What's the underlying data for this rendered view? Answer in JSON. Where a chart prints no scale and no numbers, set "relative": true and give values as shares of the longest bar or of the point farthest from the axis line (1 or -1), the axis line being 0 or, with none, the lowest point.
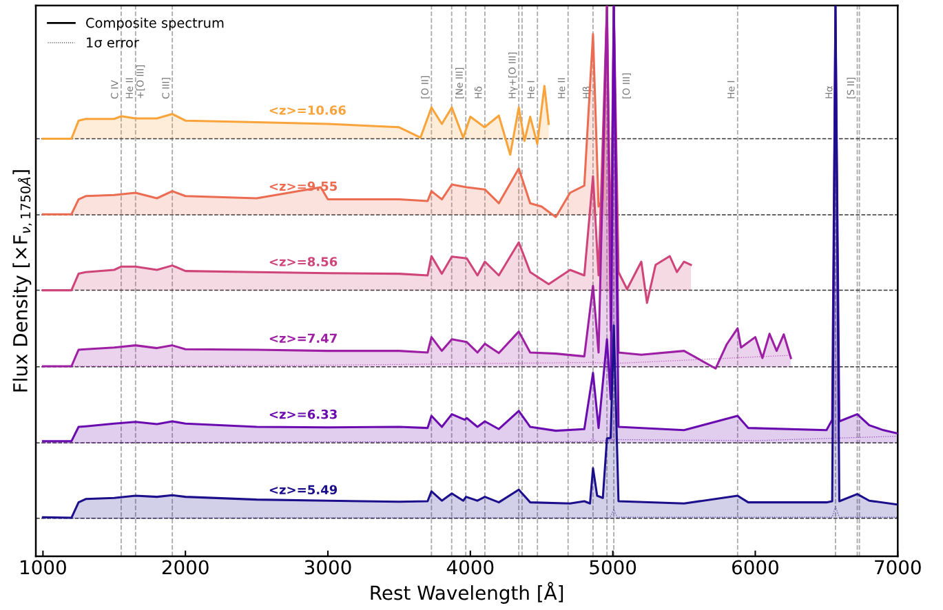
{
  "chart_data": {
    "type": "area",
    "relative": true,
    "xlabel": "Rest Wavelength [Å]",
    "ylabel": "Flux Density [×F$_{ν,1750Å}$]",
    "xlim": [
      950,
      7000
    ],
    "xticks": [
      1000,
      2000,
      3000,
      4000,
      5000,
      6000,
      7000
    ],
    "grid": false,
    "legend": "top left",
    "annotations": [
      "Composite spectrum",
      "1σ error"
    ],
    "series": [
      {
        "name": "<z>=10.66",
        "color": "#f9a33b",
        "x": [
          1000,
          1200,
          1250,
          1300,
          1500,
          1550,
          1650,
          1800,
          1908,
          2000,
          2500,
          3000,
          3500,
          3650,
          3727,
          3800,
          3870,
          3950,
          4000,
          4100,
          4200,
          4280,
          4340,
          4380,
          4420,
          4470,
          4520,
          4550
        ],
        "values": [
          0.758,
          0.758,
          0.791,
          0.794,
          0.794,
          0.799,
          0.795,
          0.795,
          0.803,
          0.791,
          0.788,
          0.785,
          0.779,
          0.76,
          0.815,
          0.785,
          0.815,
          0.76,
          0.798,
          0.779,
          0.8,
          0.729,
          0.815,
          0.754,
          0.798,
          0.749,
          0.854,
          0.785
        ]
      },
      {
        "name": "<z>=9.55",
        "color": "#ec6c52",
        "x": [
          1000,
          1200,
          1250,
          1300,
          1500,
          1650,
          1800,
          1908,
          2000,
          2500,
          2950,
          3000,
          3500,
          3700,
          3727,
          3800,
          3870,
          3975,
          4102,
          4200,
          4340,
          4420,
          4500,
          4600,
          4700,
          4800,
          4861,
          4900,
          4930,
          4959
        ],
        "values": [
          0.621,
          0.621,
          0.648,
          0.654,
          0.656,
          0.66,
          0.65,
          0.663,
          0.654,
          0.65,
          0.67,
          0.648,
          0.648,
          0.645,
          0.663,
          0.648,
          0.675,
          0.67,
          0.666,
          0.641,
          0.704,
          0.641,
          0.635,
          0.616,
          0.66,
          0.673,
          0.948,
          0.635,
          0.648,
          1.0
        ]
      },
      {
        "name": "<z>=8.56",
        "color": "#cf4479",
        "x": [
          1000,
          1200,
          1250,
          1300,
          1500,
          1550,
          1650,
          1800,
          1908,
          2000,
          2500,
          3000,
          3500,
          3700,
          3727,
          3800,
          3870,
          3975,
          4050,
          4102,
          4200,
          4340,
          4420,
          4550,
          4700,
          4800,
          4861,
          4900,
          4959,
          4985,
          5007,
          5040,
          5100,
          5200,
          5240,
          5300,
          5400,
          5450,
          5500,
          5548
        ],
        "values": [
          0.483,
          0.483,
          0.513,
          0.516,
          0.52,
          0.526,
          0.526,
          0.52,
          0.528,
          0.518,
          0.516,
          0.514,
          0.513,
          0.51,
          0.545,
          0.513,
          0.544,
          0.541,
          0.51,
          0.535,
          0.51,
          0.57,
          0.516,
          0.494,
          0.52,
          0.51,
          0.69,
          0.51,
          1.0,
          0.53,
          1.0,
          0.516,
          0.485,
          0.535,
          0.46,
          0.529,
          0.545,
          0.516,
          0.535,
          0.529
        ]
      },
      {
        "name": "<z>=7.47",
        "color": "#9d1fa4",
        "x": [
          1000,
          1200,
          1250,
          1300,
          1500,
          1650,
          1800,
          1908,
          2000,
          2500,
          3000,
          3500,
          3700,
          3727,
          3800,
          3870,
          3975,
          4050,
          4102,
          4200,
          4340,
          4420,
          4600,
          4800,
          4861,
          4900,
          4959,
          4985,
          5007,
          5040,
          5200,
          5500,
          5722,
          5800,
          5876,
          5900,
          6000,
          6050,
          6100,
          6150,
          6200,
          6250
        ],
        "values": [
          0.345,
          0.345,
          0.375,
          0.376,
          0.379,
          0.383,
          0.378,
          0.383,
          0.376,
          0.375,
          0.373,
          0.373,
          0.37,
          0.398,
          0.373,
          0.394,
          0.389,
          0.37,
          0.386,
          0.369,
          0.408,
          0.37,
          0.368,
          0.363,
          0.491,
          0.37,
          1.0,
          0.41,
          1.0,
          0.37,
          0.366,
          0.373,
          0.341,
          0.385,
          0.414,
          0.379,
          0.398,
          0.36,
          0.404,
          0.373,
          0.403,
          0.36
        ]
      },
      {
        "name": "<z>=6.33",
        "color": "#6a0bb0",
        "x": [
          1000,
          1200,
          1250,
          1300,
          1500,
          1650,
          1800,
          1908,
          2000,
          2500,
          3000,
          3500,
          3700,
          3727,
          3800,
          3870,
          3960,
          3975,
          4050,
          4102,
          4200,
          4340,
          4420,
          4600,
          4800,
          4861,
          4900,
          4959,
          4985,
          5007,
          5040,
          5500,
          5876,
          5950,
          6500,
          6540,
          6563,
          6590,
          6716,
          6800,
          6900,
          7000
        ],
        "values": [
          0.209,
          0.209,
          0.235,
          0.236,
          0.241,
          0.244,
          0.24,
          0.245,
          0.241,
          0.235,
          0.234,
          0.235,
          0.233,
          0.255,
          0.235,
          0.258,
          0.248,
          0.251,
          0.235,
          0.245,
          0.231,
          0.264,
          0.235,
          0.228,
          0.231,
          0.333,
          0.233,
          0.394,
          0.285,
          1.0,
          0.235,
          0.229,
          0.255,
          0.233,
          0.229,
          0.248,
          1.0,
          0.245,
          0.258,
          0.238,
          0.229,
          0.223
        ]
      },
      {
        "name": "<z>=5.49",
        "color": "#1c0f8b",
        "x": [
          1000,
          1200,
          1250,
          1300,
          1500,
          1650,
          1800,
          1908,
          2000,
          2500,
          3000,
          3500,
          3700,
          3727,
          3800,
          3870,
          3950,
          3970,
          4050,
          4102,
          4200,
          4340,
          4420,
          4700,
          4800,
          4840,
          4861,
          4890,
          4930,
          4959,
          4985,
          5007,
          5040,
          5500,
          5876,
          5950,
          6500,
          6540,
          6563,
          6590,
          6716,
          6800,
          7000
        ],
        "values": [
          0.071,
          0.07,
          0.098,
          0.104,
          0.106,
          0.11,
          0.108,
          0.111,
          0.108,
          0.103,
          0.101,
          0.099,
          0.1,
          0.118,
          0.101,
          0.114,
          0.101,
          0.108,
          0.101,
          0.108,
          0.098,
          0.121,
          0.098,
          0.096,
          0.1,
          0.096,
          0.16,
          0.11,
          0.106,
          0.214,
          0.215,
          0.419,
          0.1,
          0.096,
          0.11,
          0.098,
          0.098,
          0.1,
          1.0,
          0.1,
          0.113,
          0.101,
          0.094
        ]
      },
      {
        "type": "line",
        "line_style": "dotted",
        "color": "#9d1fa4",
        "x": [
          1000,
          3000,
          4861,
          5000,
          6000,
          6250
        ],
        "values": [
          0.345,
          0.347,
          0.352,
          0.35,
          0.362,
          0.365
        ]
      },
      {
        "type": "line",
        "line_style": "dotted",
        "color": "#6a0bb0",
        "x": [
          1000,
          3000,
          4840,
          4861,
          4880,
          5007,
          6000,
          7000
        ],
        "values": [
          0.206,
          0.208,
          0.208,
          0.215,
          0.208,
          0.212,
          0.21,
          0.218
        ]
      },
      {
        "type": "line",
        "line_style": "dotted",
        "color": "#1c0f8b",
        "x": [
          1000,
          3000,
          4980,
          5007,
          5030,
          6540,
          6563,
          6590,
          7000
        ],
        "values": [
          0.069,
          0.07,
          0.07,
          0.085,
          0.071,
          0.071,
          0.09,
          0.071,
          0.071
        ]
      }
    ],
    "ref_lines": [
      {
        "axis": "y",
        "value": 0.758,
        "color": "#333333",
        "line_style": "dashed"
      },
      {
        "axis": "y",
        "value": 0.62,
        "color": "#333333",
        "line_style": "dashed"
      },
      {
        "axis": "y",
        "value": 0.483,
        "color": "#333333",
        "line_style": "dashed"
      },
      {
        "axis": "y",
        "value": 0.344,
        "color": "#333333",
        "line_style": "dashed"
      },
      {
        "axis": "y",
        "value": 0.206,
        "color": "#333333",
        "line_style": "dashed"
      },
      {
        "axis": "y",
        "value": 0.069,
        "color": "#333333",
        "line_style": "dashed"
      },
      {
        "axis": "x",
        "value": 1549,
        "label": "C IV",
        "color": "#aaaaaa",
        "line_style": "dashed"
      },
      {
        "axis": "x",
        "value": 1650,
        "label": "He II\n+[O III]",
        "color": "#aaaaaa",
        "line_style": "dashed"
      },
      {
        "axis": "x",
        "value": 1908,
        "label": "C III]",
        "color": "#aaaaaa",
        "line_style": "dashed"
      },
      {
        "axis": "x",
        "value": 3727,
        "label": "[O II]",
        "color": "#aaaaaa",
        "line_style": "dashed"
      },
      {
        "axis": "x",
        "value": 3869,
        "color": "#aaaaaa",
        "line_style": "dashed"
      },
      {
        "axis": "x",
        "value": 3968,
        "label": "[Ne III]",
        "color": "#aaaaaa",
        "line_style": "dashed"
      },
      {
        "axis": "x",
        "value": 4102,
        "label": "Hδ",
        "color": "#aaaaaa",
        "line_style": "dashed"
      },
      {
        "axis": "x",
        "value": 4340,
        "label": "Hγ+[O III]",
        "color": "#aaaaaa",
        "line_style": "dashed"
      },
      {
        "axis": "x",
        "value": 4363,
        "color": "#aaaaaa",
        "line_style": "dashed"
      },
      {
        "axis": "x",
        "value": 4471,
        "label": "He I",
        "color": "#aaaaaa",
        "line_style": "dashed"
      },
      {
        "axis": "x",
        "value": 4686,
        "label": "He II",
        "color": "#aaaaaa",
        "line_style": "dashed"
      },
      {
        "axis": "x",
        "value": 4861,
        "label": "Hβ",
        "color": "#aaaaaa",
        "line_style": "dashed"
      },
      {
        "axis": "x",
        "value": 4959,
        "color": "#aaaaaa",
        "line_style": "dashed"
      },
      {
        "axis": "x",
        "value": 5007,
        "label": "[O III]",
        "color": "#aaaaaa",
        "line_style": "dashed"
      },
      {
        "axis": "x",
        "value": 5876,
        "label": "He I",
        "color": "#aaaaaa",
        "line_style": "dashed"
      },
      {
        "axis": "x",
        "value": 6563,
        "label": "Hα",
        "color": "#aaaaaa",
        "line_style": "dashed"
      },
      {
        "axis": "x",
        "value": 6716,
        "label": "[S II]",
        "color": "#aaaaaa",
        "line_style": "dashed"
      },
      {
        "axis": "x",
        "value": 6731,
        "color": "#aaaaaa",
        "line_style": "dashed"
      }
    ]
  }
}
